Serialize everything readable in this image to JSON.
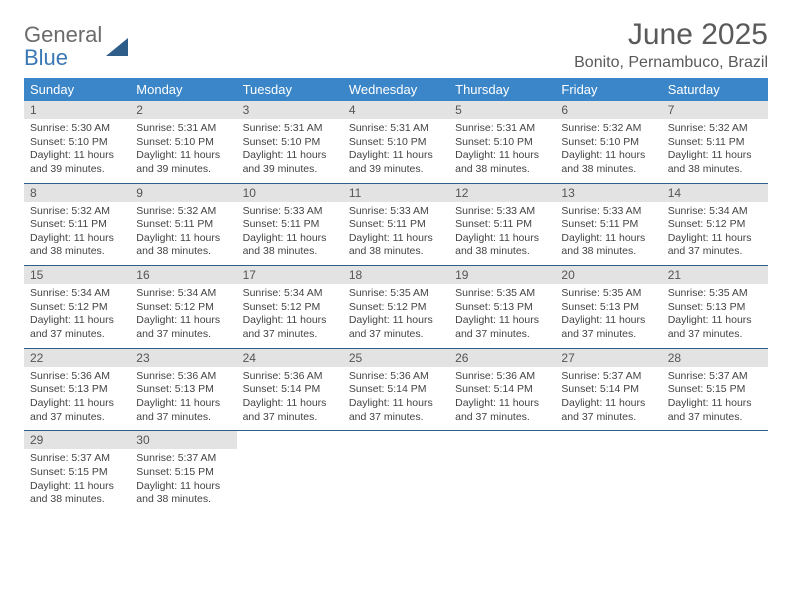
{
  "brand": {
    "part1": "General",
    "part2": "Blue"
  },
  "title": "June 2025",
  "location": "Bonito, Pernambuco, Brazil",
  "colors": {
    "header_bg": "#3a86c8",
    "header_text": "#ffffff",
    "daynum_bg": "#e3e3e3",
    "row_border": "#2f5d8a",
    "text": "#444444",
    "logo_gray": "#6b6b6b",
    "logo_blue": "#3a78b5"
  },
  "weekdays": [
    "Sunday",
    "Monday",
    "Tuesday",
    "Wednesday",
    "Thursday",
    "Friday",
    "Saturday"
  ],
  "days": [
    {
      "n": 1,
      "sunrise": "5:30 AM",
      "sunset": "5:10 PM",
      "daylight": "11 hours and 39 minutes."
    },
    {
      "n": 2,
      "sunrise": "5:31 AM",
      "sunset": "5:10 PM",
      "daylight": "11 hours and 39 minutes."
    },
    {
      "n": 3,
      "sunrise": "5:31 AM",
      "sunset": "5:10 PM",
      "daylight": "11 hours and 39 minutes."
    },
    {
      "n": 4,
      "sunrise": "5:31 AM",
      "sunset": "5:10 PM",
      "daylight": "11 hours and 39 minutes."
    },
    {
      "n": 5,
      "sunrise": "5:31 AM",
      "sunset": "5:10 PM",
      "daylight": "11 hours and 38 minutes."
    },
    {
      "n": 6,
      "sunrise": "5:32 AM",
      "sunset": "5:10 PM",
      "daylight": "11 hours and 38 minutes."
    },
    {
      "n": 7,
      "sunrise": "5:32 AM",
      "sunset": "5:11 PM",
      "daylight": "11 hours and 38 minutes."
    },
    {
      "n": 8,
      "sunrise": "5:32 AM",
      "sunset": "5:11 PM",
      "daylight": "11 hours and 38 minutes."
    },
    {
      "n": 9,
      "sunrise": "5:32 AM",
      "sunset": "5:11 PM",
      "daylight": "11 hours and 38 minutes."
    },
    {
      "n": 10,
      "sunrise": "5:33 AM",
      "sunset": "5:11 PM",
      "daylight": "11 hours and 38 minutes."
    },
    {
      "n": 11,
      "sunrise": "5:33 AM",
      "sunset": "5:11 PM",
      "daylight": "11 hours and 38 minutes."
    },
    {
      "n": 12,
      "sunrise": "5:33 AM",
      "sunset": "5:11 PM",
      "daylight": "11 hours and 38 minutes."
    },
    {
      "n": 13,
      "sunrise": "5:33 AM",
      "sunset": "5:11 PM",
      "daylight": "11 hours and 38 minutes."
    },
    {
      "n": 14,
      "sunrise": "5:34 AM",
      "sunset": "5:12 PM",
      "daylight": "11 hours and 37 minutes."
    },
    {
      "n": 15,
      "sunrise": "5:34 AM",
      "sunset": "5:12 PM",
      "daylight": "11 hours and 37 minutes."
    },
    {
      "n": 16,
      "sunrise": "5:34 AM",
      "sunset": "5:12 PM",
      "daylight": "11 hours and 37 minutes."
    },
    {
      "n": 17,
      "sunrise": "5:34 AM",
      "sunset": "5:12 PM",
      "daylight": "11 hours and 37 minutes."
    },
    {
      "n": 18,
      "sunrise": "5:35 AM",
      "sunset": "5:12 PM",
      "daylight": "11 hours and 37 minutes."
    },
    {
      "n": 19,
      "sunrise": "5:35 AM",
      "sunset": "5:13 PM",
      "daylight": "11 hours and 37 minutes."
    },
    {
      "n": 20,
      "sunrise": "5:35 AM",
      "sunset": "5:13 PM",
      "daylight": "11 hours and 37 minutes."
    },
    {
      "n": 21,
      "sunrise": "5:35 AM",
      "sunset": "5:13 PM",
      "daylight": "11 hours and 37 minutes."
    },
    {
      "n": 22,
      "sunrise": "5:36 AM",
      "sunset": "5:13 PM",
      "daylight": "11 hours and 37 minutes."
    },
    {
      "n": 23,
      "sunrise": "5:36 AM",
      "sunset": "5:13 PM",
      "daylight": "11 hours and 37 minutes."
    },
    {
      "n": 24,
      "sunrise": "5:36 AM",
      "sunset": "5:14 PM",
      "daylight": "11 hours and 37 minutes."
    },
    {
      "n": 25,
      "sunrise": "5:36 AM",
      "sunset": "5:14 PM",
      "daylight": "11 hours and 37 minutes."
    },
    {
      "n": 26,
      "sunrise": "5:36 AM",
      "sunset": "5:14 PM",
      "daylight": "11 hours and 37 minutes."
    },
    {
      "n": 27,
      "sunrise": "5:37 AM",
      "sunset": "5:14 PM",
      "daylight": "11 hours and 37 minutes."
    },
    {
      "n": 28,
      "sunrise": "5:37 AM",
      "sunset": "5:15 PM",
      "daylight": "11 hours and 37 minutes."
    },
    {
      "n": 29,
      "sunrise": "5:37 AM",
      "sunset": "5:15 PM",
      "daylight": "11 hours and 38 minutes."
    },
    {
      "n": 30,
      "sunrise": "5:37 AM",
      "sunset": "5:15 PM",
      "daylight": "11 hours and 38 minutes."
    }
  ],
  "labels": {
    "sunrise": "Sunrise:",
    "sunset": "Sunset:",
    "daylight": "Daylight:"
  },
  "layout": {
    "rows": 5,
    "cols": 7,
    "first_weekday_index": 0
  }
}
